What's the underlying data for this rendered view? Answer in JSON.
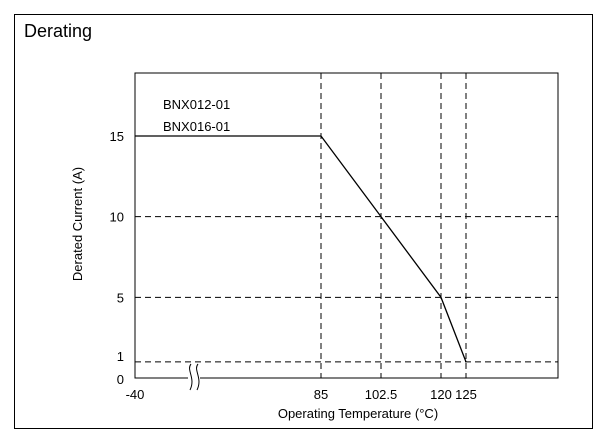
{
  "panel": {
    "title": "Derating"
  },
  "chart_data": {
    "type": "line",
    "title": "",
    "xlabel": "Operating Temperature (°C)",
    "ylabel": "Derated Current (A)",
    "x_ticks": [
      "-40",
      "85",
      "102.5",
      "120",
      "125"
    ],
    "y_ticks": [
      "0",
      "1",
      "5",
      "10",
      "15"
    ],
    "axis_break": "x",
    "grid": "dashed",
    "legend_position": "top-left",
    "series": [
      {
        "name": "BNX012-01 / BNX016-01",
        "labels": [
          "BNX012-01",
          "BNX016-01"
        ],
        "x": [
          -40,
          85,
          102.5,
          120,
          125
        ],
        "y": [
          15,
          15,
          10,
          5,
          1
        ]
      }
    ]
  }
}
